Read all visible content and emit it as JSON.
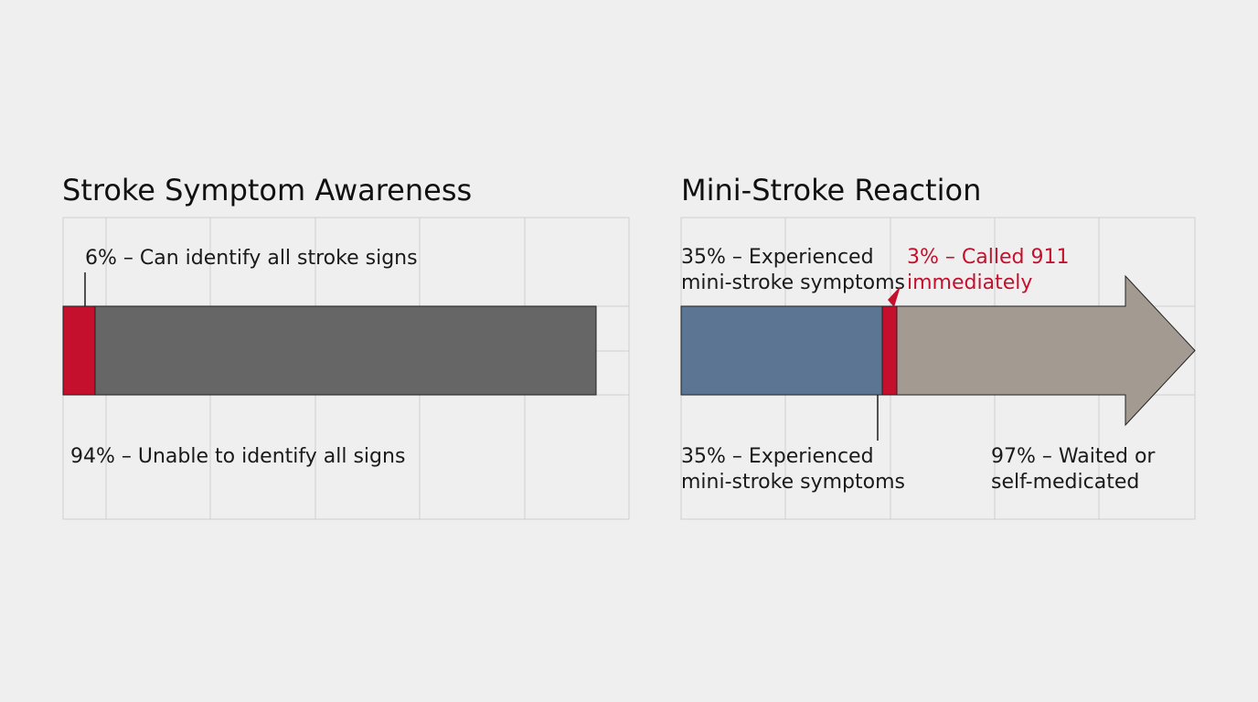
{
  "colors": {
    "background": "#efefef",
    "red": "#c4102d",
    "dark_gray": "#666666",
    "blue": "#5c7592",
    "taupe": "#a39b91",
    "grid": "#cfcfcf"
  },
  "chart_data": [
    {
      "type": "bar",
      "orientation": "horizontal-stacked",
      "title": "Stroke Symptom Awareness",
      "series": [
        {
          "label": "6% – Can identify all stroke signs",
          "value": 6,
          "color": "#c4102d"
        },
        {
          "label": "94% – Unable to identify all signs",
          "value": 94,
          "color": "#666666"
        }
      ],
      "grid": true
    },
    {
      "type": "bar",
      "orientation": "horizontal-stacked-arrow",
      "title": "Mini-Stroke Reaction",
      "top_label_left": [
        "35% – Experienced",
        "mini-stroke symptoms"
      ],
      "series": [
        {
          "label": [
            "35% – Experienced",
            "mini-stroke symptoms"
          ],
          "value": 35,
          "color": "#5c7592"
        },
        {
          "label": [
            "3% – Called 911",
            "immediately"
          ],
          "value": 3,
          "color": "#c4102d"
        },
        {
          "label": [
            "97% – Waited or",
            "self-medicated"
          ],
          "value": 97,
          "color": "#a39b91"
        }
      ],
      "grid": true
    }
  ]
}
